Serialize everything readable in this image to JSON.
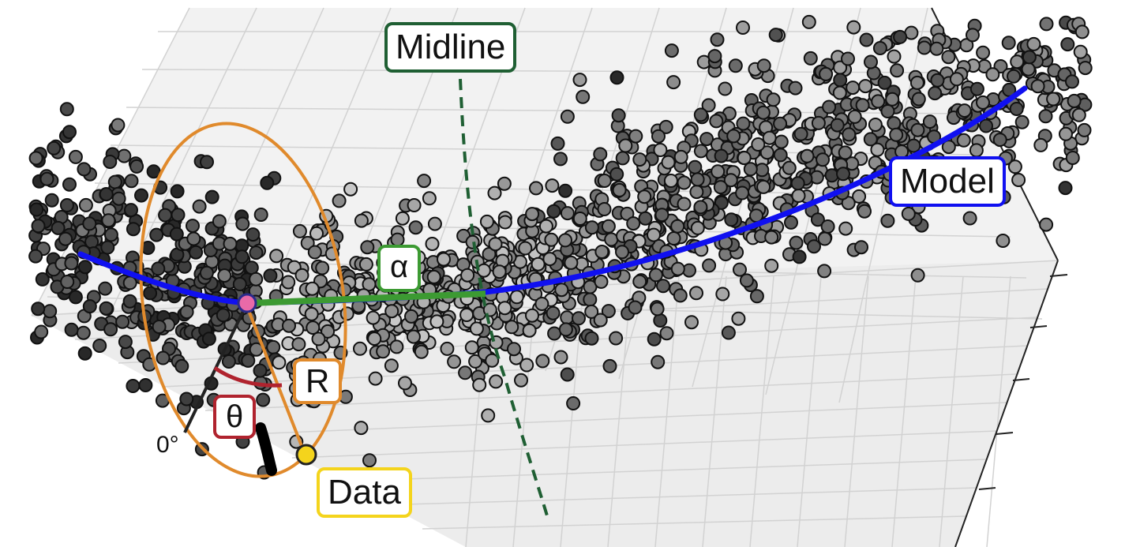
{
  "labels": {
    "midline": "Midline",
    "model": "Model",
    "alpha": "α",
    "r": "R",
    "theta": "θ",
    "data": "Data",
    "zero_degree": "0°"
  },
  "colors": {
    "model_curve": "#1010f0",
    "midline": "#1f5f33",
    "alpha_arrow": "#3c9a32",
    "ellipse": "#e08a2c",
    "theta_arc": "#b0232e",
    "data_point": "#f4d41c",
    "model_point": "#e86aa8",
    "scatter_fill": "#6a6a6a",
    "scatter_edge": "#111111",
    "grid": "#cfcfcf",
    "pane": "#f1f1f1"
  },
  "icons": {
    "data_point": "yellow-circle",
    "model_point": "pink-circle"
  }
}
